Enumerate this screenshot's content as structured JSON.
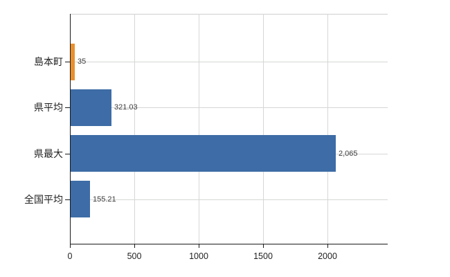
{
  "chart": {
    "background": "#ffffff",
    "axis_color": "#1a1a1a",
    "grid_color": "#d4d7d4",
    "border_color": "#cfcfcf",
    "bar_blue": "#3D6CA6",
    "bar_orange": "#E9902E"
  },
  "chart_data": {
    "type": "bar",
    "orientation": "horizontal",
    "categories": [
      "島本町",
      "県平均",
      "県最大",
      "全国平均"
    ],
    "values": [
      35,
      321.03,
      2065,
      155.21
    ],
    "value_labels": [
      "35",
      "321.03",
      "2,065",
      "155.21"
    ],
    "bar_colors": [
      "#E9902E",
      "#3D6CA6",
      "#3D6CA6",
      "#3D6CA6"
    ],
    "x_ticks": [
      0,
      500,
      1000,
      1500,
      2000
    ],
    "x_tick_labels": [
      "0",
      "500",
      "1000",
      "1500",
      "2000"
    ],
    "xlim": [
      0,
      2470
    ],
    "grid": "both",
    "legend": "none"
  }
}
